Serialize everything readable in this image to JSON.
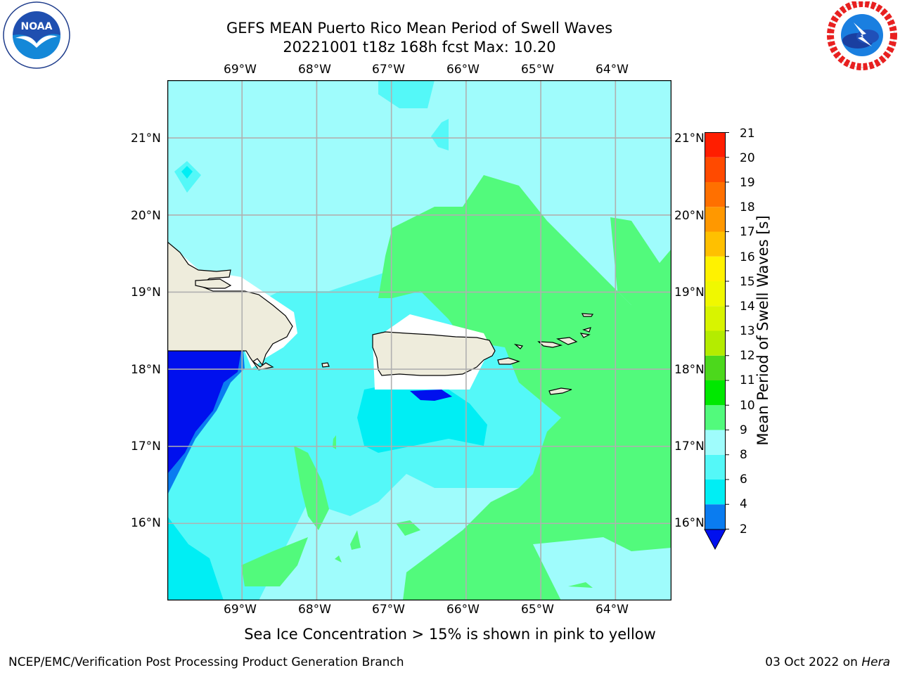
{
  "header": {
    "title": "GEFS MEAN Puerto Rico Mean Period of Swell Waves",
    "subtitle": "20221001 t18z 168h fcst   Max: 10.20"
  },
  "logos": {
    "left": {
      "name": "NOAA",
      "ring_text": "NATIONAL OCEANIC AND ATMOSPHERIC ADMINISTRATION · U.S. DEPARTMENT OF COMMERCE"
    },
    "right": {
      "name": "NATIONAL WEATHER SERVICE"
    }
  },
  "map": {
    "lon_ticks": [
      "69°W",
      "68°W",
      "67°W",
      "66°W",
      "65°W",
      "64°W"
    ],
    "lat_ticks": [
      "21°N",
      "20°N",
      "19°N",
      "18°N",
      "17°N",
      "16°N"
    ],
    "lon_values": [
      -69,
      -68,
      -67,
      -66,
      -65,
      -64
    ],
    "lat_values": [
      21,
      20,
      19,
      18,
      17,
      16
    ],
    "lon_range": [
      -70,
      -63.25
    ],
    "lat_range": [
      15,
      21.75
    ],
    "grid": true,
    "colors": {
      "land": "#eeecdc",
      "grid": "#b0b0b0",
      "ocean_8_9": "#9ffcfc",
      "ocean_6_8": "#54f8f8",
      "ocean_4_6": "#00eef4",
      "ocean_2_4": "#0a7cf0",
      "ocean_below_2": "#0010ee",
      "ocean_9_10": "#52fa7c"
    }
  },
  "colorbar": {
    "label": "Mean Period of Swell Waves [s]",
    "ticks": [
      "21",
      "20",
      "19",
      "18",
      "17",
      "16",
      "15",
      "14",
      "13",
      "12",
      "11",
      "10",
      "9",
      "8",
      "6",
      "4",
      "2"
    ],
    "segments": [
      {
        "from": 2,
        "to": 4,
        "color": "#0a7cf0"
      },
      {
        "from": 4,
        "to": 6,
        "color": "#00eef4"
      },
      {
        "from": 6,
        "to": 8,
        "color": "#54f8f8"
      },
      {
        "from": 8,
        "to": 9,
        "color": "#9ffcfc"
      },
      {
        "from": 9,
        "to": 10,
        "color": "#52fa7c"
      },
      {
        "from": 10,
        "to": 11,
        "color": "#00e800"
      },
      {
        "from": 11,
        "to": 12,
        "color": "#4cd81c"
      },
      {
        "from": 12,
        "to": 13,
        "color": "#b4ec00"
      },
      {
        "from": 13,
        "to": 14,
        "color": "#d8f400"
      },
      {
        "from": 14,
        "to": 15,
        "color": "#f0f800"
      },
      {
        "from": 15,
        "to": 16,
        "color": "#fff200"
      },
      {
        "from": 16,
        "to": 17,
        "color": "#ffc000"
      },
      {
        "from": 17,
        "to": 18,
        "color": "#ff9800"
      },
      {
        "from": 18,
        "to": 19,
        "color": "#ff7000"
      },
      {
        "from": 19,
        "to": 20,
        "color": "#ff4a00"
      },
      {
        "from": 20,
        "to": 21,
        "color": "#ff1e00"
      }
    ],
    "under_color": "#0010ee"
  },
  "note": "Sea Ice Concentration > 15% is shown in pink to yellow",
  "footer": {
    "left": "NCEP/EMC/Verification Post Processing Product Generation Branch",
    "date": "03 Oct 2022 on ",
    "machine": "Hera"
  }
}
